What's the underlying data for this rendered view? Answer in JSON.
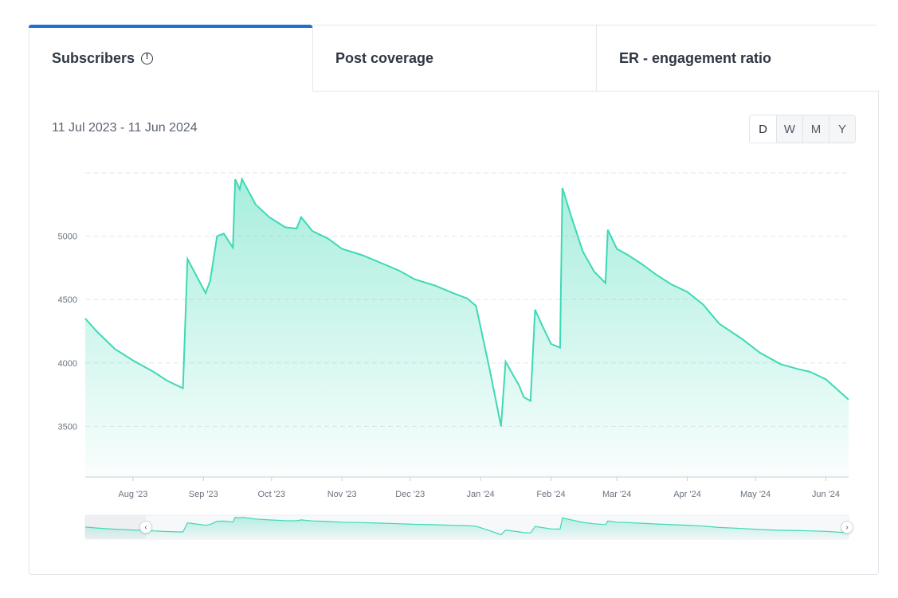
{
  "tabs": [
    {
      "label": "Subscribers",
      "active": true
    },
    {
      "label": "Post coverage",
      "active": false
    },
    {
      "label": "ER - engagement ratio",
      "active": false
    }
  ],
  "date_range": "11 Jul 2023 - 11 Jun 2024",
  "periods": [
    "D",
    "W",
    "M",
    "Y"
  ],
  "navigator": {
    "left_label": "‹",
    "right_label": "›"
  },
  "colors": {
    "line": "#3dd9b5",
    "tab_accent": "#1f6fce"
  },
  "chart_data": {
    "type": "area",
    "title": "",
    "xlabel": "",
    "ylabel": "",
    "ylim": [
      3100,
      5500
    ],
    "yticks": [
      3500,
      4000,
      4500,
      5000
    ],
    "xlim": [
      "2023-07-11",
      "2024-06-11"
    ],
    "xticks": [
      {
        "date": "2023-08-01",
        "label": "Aug '23"
      },
      {
        "date": "2023-09-01",
        "label": "Sep '23"
      },
      {
        "date": "2023-10-01",
        "label": "Oct '23"
      },
      {
        "date": "2023-11-01",
        "label": "Nov '23"
      },
      {
        "date": "2023-12-01",
        "label": "Dec '23"
      },
      {
        "date": "2024-01-01",
        "label": "Jan '24"
      },
      {
        "date": "2024-02-01",
        "label": "Feb '24"
      },
      {
        "date": "2024-03-01",
        "label": "Mar '24"
      },
      {
        "date": "2024-04-01",
        "label": "Apr '24"
      },
      {
        "date": "2024-05-01",
        "label": "May '24"
      },
      {
        "date": "2024-06-01",
        "label": "Jun '24"
      }
    ],
    "grid": true,
    "series": [
      {
        "name": "",
        "points": [
          [
            "2023-07-11",
            4350
          ],
          [
            "2023-07-16",
            4250
          ],
          [
            "2023-07-24",
            4110
          ],
          [
            "2023-08-01",
            4020
          ],
          [
            "2023-08-10",
            3930
          ],
          [
            "2023-08-16",
            3860
          ],
          [
            "2023-08-23",
            3800
          ],
          [
            "2023-08-25",
            4820
          ],
          [
            "2023-09-02",
            4550
          ],
          [
            "2023-09-04",
            4650
          ],
          [
            "2023-09-07",
            5000
          ],
          [
            "2023-09-10",
            5020
          ],
          [
            "2023-09-14",
            4910
          ],
          [
            "2023-09-15",
            5450
          ],
          [
            "2023-09-17",
            5370
          ],
          [
            "2023-09-18",
            5450
          ],
          [
            "2023-09-24",
            5250
          ],
          [
            "2023-09-30",
            5150
          ],
          [
            "2023-10-07",
            5070
          ],
          [
            "2023-10-12",
            5060
          ],
          [
            "2023-10-14",
            5150
          ],
          [
            "2023-10-19",
            5040
          ],
          [
            "2023-10-26",
            4980
          ],
          [
            "2023-11-01",
            4900
          ],
          [
            "2023-11-10",
            4850
          ],
          [
            "2023-11-18",
            4790
          ],
          [
            "2023-11-26",
            4730
          ],
          [
            "2023-12-03",
            4660
          ],
          [
            "2023-12-12",
            4610
          ],
          [
            "2023-12-20",
            4550
          ],
          [
            "2023-12-26",
            4510
          ],
          [
            "2023-12-30",
            4450
          ],
          [
            "2024-01-05",
            3950
          ],
          [
            "2024-01-10",
            3500
          ],
          [
            "2024-01-12",
            4010
          ],
          [
            "2024-01-18",
            3820
          ],
          [
            "2024-01-20",
            3730
          ],
          [
            "2024-01-23",
            3700
          ],
          [
            "2024-01-25",
            4420
          ],
          [
            "2024-01-28",
            4300
          ],
          [
            "2024-02-01",
            4150
          ],
          [
            "2024-02-05",
            4120
          ],
          [
            "2024-02-06",
            5380
          ],
          [
            "2024-02-10",
            5150
          ],
          [
            "2024-02-15",
            4880
          ],
          [
            "2024-02-20",
            4720
          ],
          [
            "2024-02-25",
            4630
          ],
          [
            "2024-02-26",
            5050
          ],
          [
            "2024-03-01",
            4900
          ],
          [
            "2024-03-06",
            4850
          ],
          [
            "2024-03-12",
            4780
          ],
          [
            "2024-03-18",
            4700
          ],
          [
            "2024-03-25",
            4620
          ],
          [
            "2024-04-01",
            4560
          ],
          [
            "2024-04-08",
            4460
          ],
          [
            "2024-04-15",
            4310
          ],
          [
            "2024-04-25",
            4190
          ],
          [
            "2024-05-03",
            4080
          ],
          [
            "2024-05-12",
            3990
          ],
          [
            "2024-05-20",
            3950
          ],
          [
            "2024-05-25",
            3930
          ],
          [
            "2024-06-01",
            3870
          ],
          [
            "2024-06-11",
            3710
          ]
        ]
      }
    ]
  }
}
